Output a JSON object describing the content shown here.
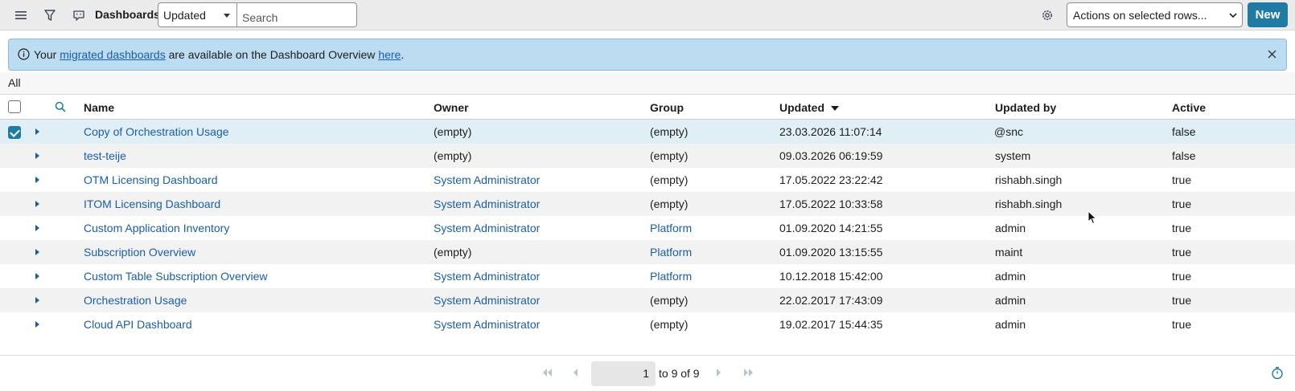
{
  "toolbar": {
    "title": "Dashboards",
    "sort_field": "Updated",
    "search_placeholder": "Search",
    "actions_label": "Actions on selected rows...",
    "new_label": "New"
  },
  "banner": {
    "part1": "Your ",
    "link1": "migrated dashboards",
    "part2": " are available on the Dashboard Overview ",
    "link2": "here",
    "part3": "."
  },
  "filter": {
    "label": "All"
  },
  "columns": {
    "name": "Name",
    "owner": "Owner",
    "group": "Group",
    "updated": "Updated",
    "updated_by": "Updated by",
    "active": "Active"
  },
  "rows": [
    {
      "name": "Copy of Orchestration Usage",
      "owner": "(empty)",
      "group": "(empty)",
      "updated": "23.03.2026 11:07:14",
      "updated_by": "@snc",
      "active": "false"
    },
    {
      "name": "test-teije",
      "owner": "(empty)",
      "group": "(empty)",
      "updated": "09.03.2026 06:19:59",
      "updated_by": "system",
      "active": "false"
    },
    {
      "name": "OTM Licensing Dashboard",
      "owner": "System Administrator",
      "group": "(empty)",
      "updated": "17.05.2022 23:22:42",
      "updated_by": "rishabh.singh",
      "active": "true"
    },
    {
      "name": "ITOM Licensing Dashboard",
      "owner": "System Administrator",
      "group": "(empty)",
      "updated": "17.05.2022 10:33:58",
      "updated_by": "rishabh.singh",
      "active": "true"
    },
    {
      "name": "Custom Application Inventory",
      "owner": "System Administrator",
      "group": "Platform",
      "updated": "01.09.2020 14:21:55",
      "updated_by": "admin",
      "active": "true"
    },
    {
      "name": "Subscription Overview",
      "owner": "(empty)",
      "group": "Platform",
      "updated": "01.09.2020 13:15:55",
      "updated_by": "maint",
      "active": "true"
    },
    {
      "name": "Custom Table Subscription Overview",
      "owner": "System Administrator",
      "group": "Platform",
      "updated": "10.12.2018 15:42:00",
      "updated_by": "admin",
      "active": "true"
    },
    {
      "name": "Orchestration Usage",
      "owner": "System Administrator",
      "group": "(empty)",
      "updated": "22.02.2017 17:43:09",
      "updated_by": "admin",
      "active": "true"
    },
    {
      "name": "Cloud API Dashboard",
      "owner": "System Administrator",
      "group": "(empty)",
      "updated": "19.02.2017 15:44:35",
      "updated_by": "admin",
      "active": "true"
    }
  ],
  "pagination": {
    "current": "1",
    "range_text": "to 9 of 9"
  }
}
